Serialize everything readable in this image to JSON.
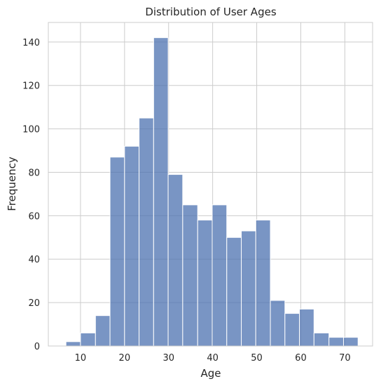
{
  "chart_data": {
    "type": "bar",
    "title": "Distribution of User Ages",
    "xlabel": "Age",
    "ylabel": "Frequency",
    "xlim": [
      2.7,
      76.3
    ],
    "ylim": [
      0,
      149
    ],
    "xticks": [
      10,
      20,
      30,
      40,
      50,
      60,
      70
    ],
    "yticks": [
      0,
      20,
      40,
      60,
      80,
      100,
      120,
      140
    ],
    "grid": true,
    "bar_color": "#4c72b0",
    "bar_opacity": 0.75,
    "grid_color": "#cccccc",
    "bins": [
      {
        "x0": 6.7,
        "x1": 10.0,
        "count": 2
      },
      {
        "x0": 10.0,
        "x1": 13.4,
        "count": 6
      },
      {
        "x0": 13.4,
        "x1": 16.7,
        "count": 14
      },
      {
        "x0": 16.7,
        "x1": 20.0,
        "count": 87
      },
      {
        "x0": 20.0,
        "x1": 23.3,
        "count": 92
      },
      {
        "x0": 23.3,
        "x1": 26.6,
        "count": 105
      },
      {
        "x0": 26.6,
        "x1": 29.9,
        "count": 142
      },
      {
        "x0": 29.9,
        "x1": 33.2,
        "count": 79
      },
      {
        "x0": 33.2,
        "x1": 36.6,
        "count": 65
      },
      {
        "x0": 36.6,
        "x1": 39.9,
        "count": 58
      },
      {
        "x0": 39.9,
        "x1": 43.2,
        "count": 65
      },
      {
        "x0": 43.2,
        "x1": 46.5,
        "count": 50
      },
      {
        "x0": 46.5,
        "x1": 49.8,
        "count": 53
      },
      {
        "x0": 49.8,
        "x1": 53.1,
        "count": 58
      },
      {
        "x0": 53.1,
        "x1": 56.4,
        "count": 21
      },
      {
        "x0": 56.4,
        "x1": 59.7,
        "count": 15
      },
      {
        "x0": 59.7,
        "x1": 63.0,
        "count": 17
      },
      {
        "x0": 63.0,
        "x1": 66.4,
        "count": 6
      },
      {
        "x0": 66.4,
        "x1": 69.7,
        "count": 4
      },
      {
        "x0": 69.7,
        "x1": 73.0,
        "count": 4
      }
    ]
  }
}
